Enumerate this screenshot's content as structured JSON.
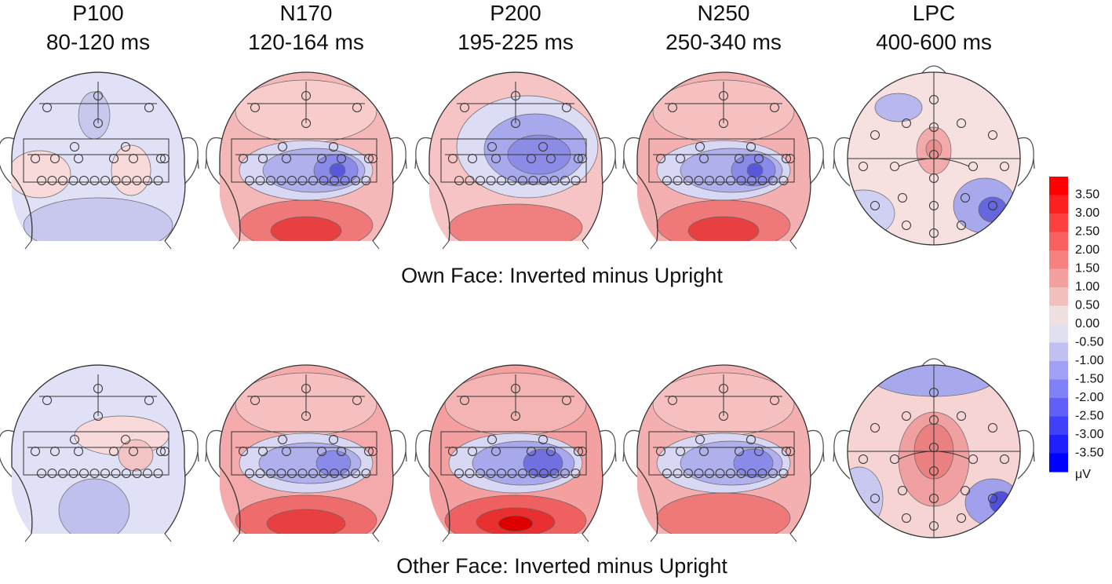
{
  "columns": [
    {
      "name": "P100",
      "window": "80-120 ms"
    },
    {
      "name": "N170",
      "window": "120-164 ms"
    },
    {
      "name": "P200",
      "window": "195-225 ms"
    },
    {
      "name": "N250",
      "window": "250-340 ms"
    },
    {
      "name": "LPC",
      "window": "400-600 ms"
    }
  ],
  "rows": [
    {
      "label": "Own Face: Inverted minus Upright"
    },
    {
      "label": "Other Face: Inverted minus Upright"
    }
  ],
  "colorbar": {
    "ticks": [
      "3.50",
      "3.00",
      "2.50",
      "2.00",
      "1.50",
      "1.00",
      "0.50",
      "0.00",
      "-0.50",
      "-1.00",
      "-1.50",
      "-2.00",
      "-2.50",
      "-3.00",
      "-3.50"
    ],
    "unit": "μV"
  }
}
